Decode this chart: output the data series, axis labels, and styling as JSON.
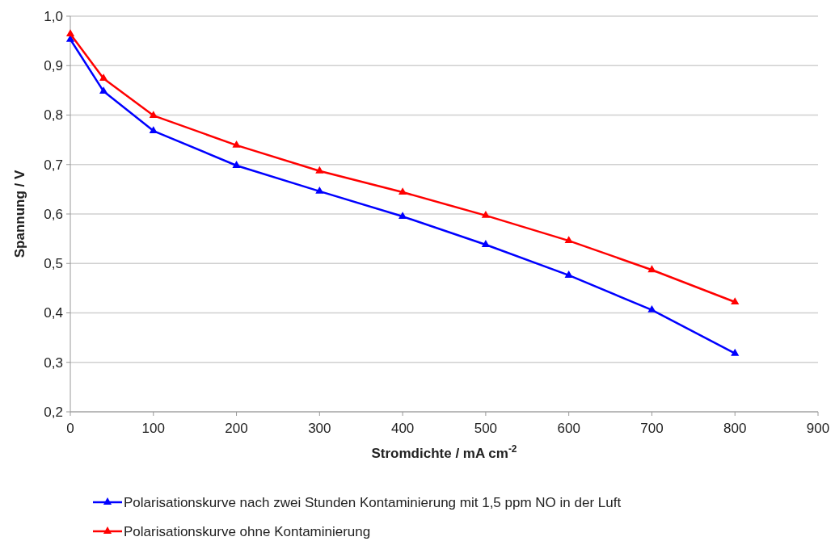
{
  "chart_data": {
    "type": "line",
    "xlabel": "Stromdichte / mA cm$^{-2}$",
    "ylabel": "Spannung / V",
    "x": [
      0,
      40,
      100,
      200,
      300,
      400,
      500,
      600,
      700,
      800
    ],
    "series": [
      {
        "name": "Polarisationskurve nach zwei Stunden Kontaminierung mit 1,5 ppm NO in der Luft",
        "color": "#0000ff",
        "values": [
          0.953,
          0.848,
          0.768,
          0.698,
          0.646,
          0.595,
          0.538,
          0.476,
          0.406,
          0.318
        ]
      },
      {
        "name": "Polarisationskurve ohne Kontaminierung",
        "color": "#ff0000",
        "values": [
          0.964,
          0.874,
          0.799,
          0.739,
          0.687,
          0.644,
          0.597,
          0.546,
          0.487,
          0.422
        ]
      }
    ],
    "xlim": [
      0,
      900
    ],
    "xticks": [
      0,
      100,
      200,
      300,
      400,
      500,
      600,
      700,
      800,
      900
    ],
    "ylim": [
      0.2,
      1.0
    ],
    "yticks": [
      {
        "value": 0.2,
        "label": "0,2"
      },
      {
        "value": 0.3,
        "label": "0,3"
      },
      {
        "value": 0.4,
        "label": "0,4"
      },
      {
        "value": 0.5,
        "label": "0,5"
      },
      {
        "value": 0.6,
        "label": "0,6"
      },
      {
        "value": 0.7,
        "label": "0,7"
      },
      {
        "value": 0.8,
        "label": "0,8"
      },
      {
        "value": 0.9,
        "label": "0,9"
      },
      {
        "value": 1.0,
        "label": "1,0"
      }
    ],
    "grid": "y",
    "legend": "bottom",
    "marker": "triangle",
    "line_style": "solid"
  }
}
